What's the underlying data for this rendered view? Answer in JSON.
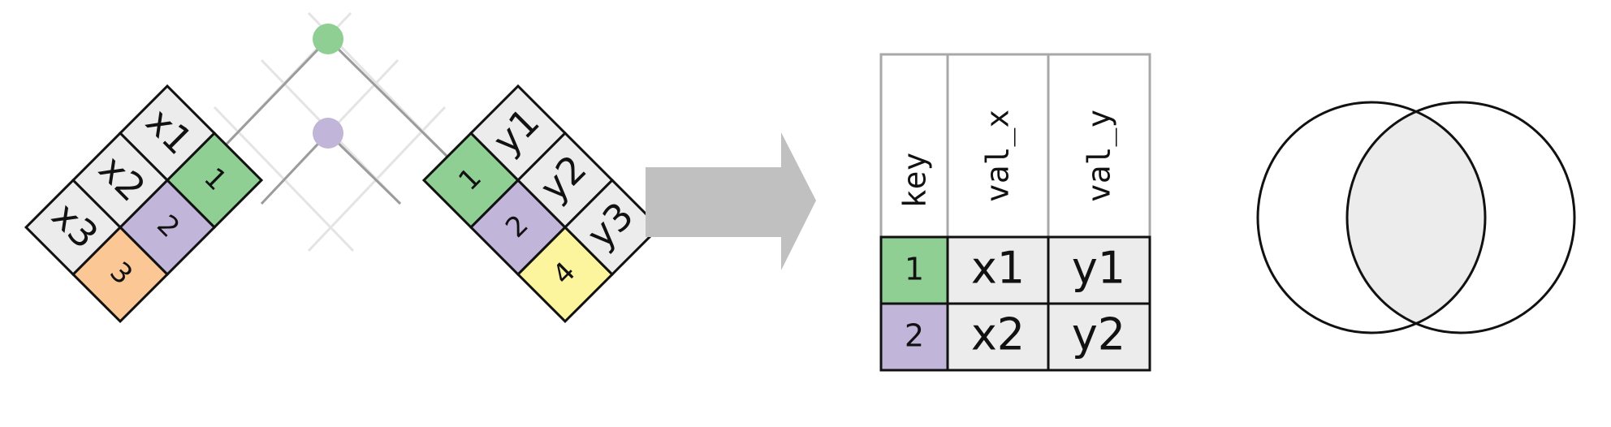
{
  "colors": {
    "key_1": "#90cf94",
    "key_2": "#c1b6d9",
    "key_3": "#fbc794",
    "key_4": "#fdf59d",
    "value_cell": "#ececec",
    "arrow": "#c0c0c0",
    "guide_line": "#9c9c9c",
    "faint_guide": "#e4e4e4",
    "header_border": "#a8a8a8",
    "intersection_fill": "#ececec"
  },
  "left_table_x": {
    "keys": [
      "1",
      "2",
      "3"
    ],
    "values": [
      "x1",
      "x2",
      "x3"
    ]
  },
  "left_table_y": {
    "keys": [
      "1",
      "2",
      "4"
    ],
    "values": [
      "y1",
      "y2",
      "y3"
    ]
  },
  "result_table": {
    "headers": [
      "key",
      "val_x",
      "val_y"
    ],
    "rows": [
      {
        "key": "1",
        "val_x": "x1",
        "val_y": "y1"
      },
      {
        "key": "2",
        "val_x": "x2",
        "val_y": "y2"
      }
    ]
  },
  "venn": {
    "highlight": "intersection"
  }
}
